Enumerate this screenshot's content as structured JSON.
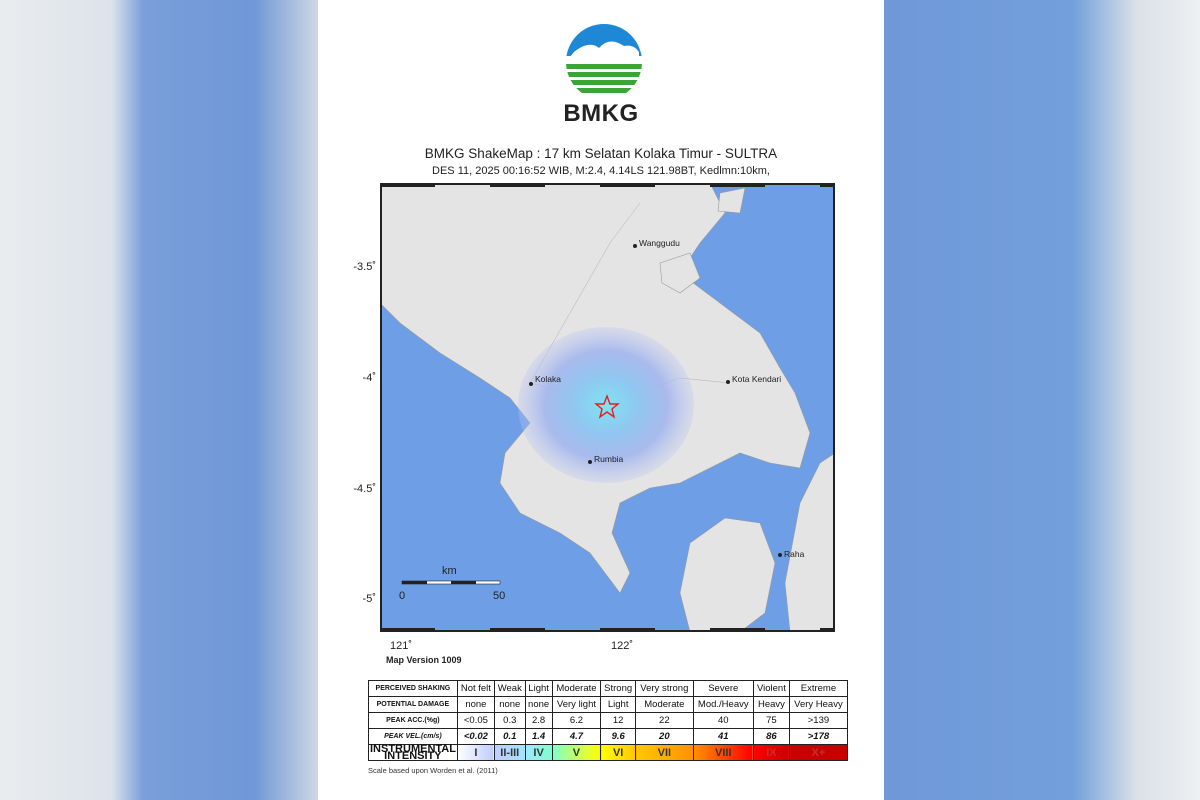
{
  "header": {
    "brand": "BMKG",
    "title": "BMKG ShakeMap : 17 km Selatan Kolaka Timur - SULTRA",
    "subtitle": "DES 11, 2025 00:16:52 WIB, M:2.4, 4.14LS 121.98BT, Kedlmn:10km,"
  },
  "map": {
    "lat_ticks": [
      "-3.5˚",
      "-4˚",
      "-4.5˚",
      "-5˚"
    ],
    "lon_ticks": [
      "121˚",
      "122˚"
    ],
    "cities": [
      "Wanggudu",
      "Kolaka",
      "Kota Kendari",
      "Rumbia",
      "Raha"
    ],
    "epicenter_icon": "star-icon",
    "scale_bar": {
      "unit": "km",
      "start": "0",
      "end": "50"
    },
    "version": "Map Version 1009",
    "colors": {
      "sea": "#6e9ee6",
      "land": "#e6e6e6",
      "intensity_weak": "#a0b4f0",
      "intensity_light": "#80e0f0"
    }
  },
  "legend": {
    "rows": [
      {
        "label": "PERCEIVED SHAKING",
        "values": [
          "Not felt",
          "Weak",
          "Light",
          "Moderate",
          "Strong",
          "Very strong",
          "Severe",
          "Violent",
          "Extreme"
        ]
      },
      {
        "label": "POTENTIAL DAMAGE",
        "values": [
          "none",
          "none",
          "none",
          "Very light",
          "Light",
          "Moderate",
          "Mod./Heavy",
          "Heavy",
          "Very Heavy"
        ]
      },
      {
        "label": "PEAK ACC.(%g)",
        "values": [
          "<0.05",
          "0.3",
          "2.8",
          "6.2",
          "12",
          "22",
          "40",
          "75",
          ">139"
        ]
      },
      {
        "label": "PEAK VEL.(cm/s)",
        "values": [
          "<0.02",
          "0.1",
          "1.4",
          "4.7",
          "9.6",
          "20",
          "41",
          "86",
          ">178"
        ]
      },
      {
        "label": "INSTRUMENTAL INTENSITY",
        "values": [
          "I",
          "II-III",
          "IV",
          "V",
          "VI",
          "VII",
          "VIII",
          "IX",
          "X+"
        ]
      }
    ],
    "intensity_colors": [
      "#ffffff",
      "#bfccff",
      "#a0e6ff",
      "#80ffcc",
      "#ffff00",
      "#ffc800",
      "#ff9100",
      "#ff0000",
      "#c80000"
    ],
    "note": "Scale based upon Worden et al. (2011)"
  }
}
